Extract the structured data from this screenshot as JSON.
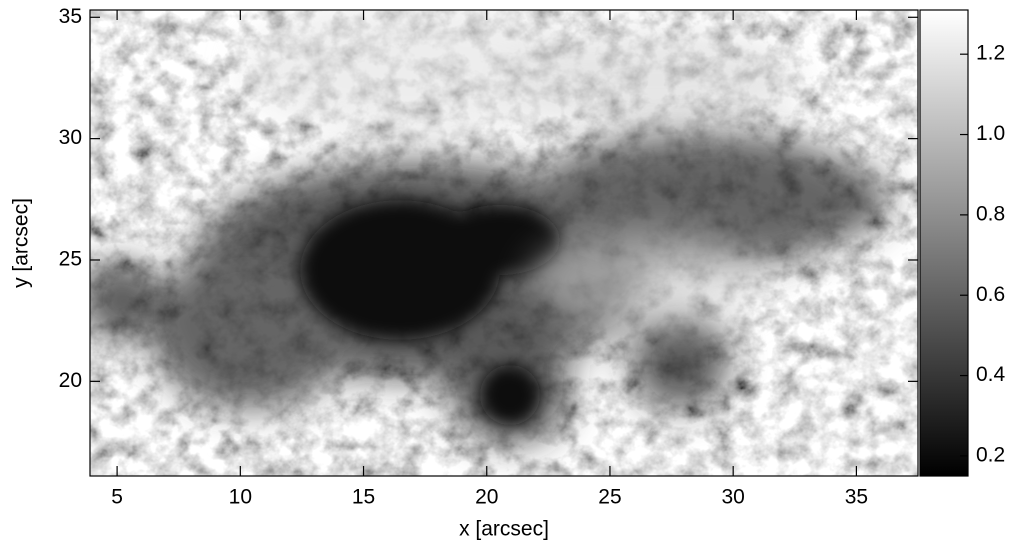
{
  "chart_data": {
    "type": "image",
    "xlabel": "x [arcsec]",
    "ylabel": "y [arcsec]",
    "xlim": [
      3.9,
      37.5
    ],
    "xticks": [
      5,
      10,
      15,
      20,
      25,
      30,
      35
    ],
    "ylim": [
      16.1,
      35.3
    ],
    "yticks": [
      20,
      25,
      30,
      35
    ],
    "colorbar": {
      "lim": [
        0.15,
        1.31
      ],
      "ticks": [
        0.2,
        0.4,
        0.6,
        0.8,
        {
          "value": 1,
          "label": "1.0"
        },
        1.2
      ]
    }
  }
}
